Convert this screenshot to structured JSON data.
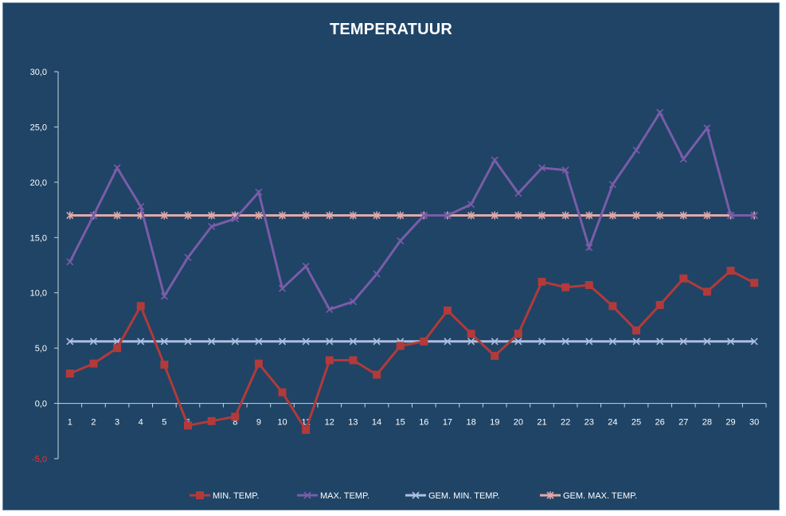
{
  "chart_data": {
    "type": "line",
    "title": "TEMPERATUUR",
    "x": [
      1,
      2,
      3,
      4,
      5,
      6,
      7,
      8,
      9,
      10,
      11,
      12,
      13,
      14,
      15,
      16,
      17,
      18,
      19,
      20,
      21,
      22,
      23,
      24,
      25,
      26,
      27,
      28,
      29,
      30
    ],
    "y_ticks": [
      "-5,0",
      "0,0",
      "5,0",
      "10,0",
      "15,0",
      "20,0",
      "25,0",
      "30,0"
    ],
    "ylim": [
      -5,
      30
    ],
    "grid": false,
    "legend_position": "bottom",
    "series": [
      {
        "name": "MIN. TEMP.",
        "color": "#b23a3a",
        "marker": "square",
        "values": [
          2.7,
          3.6,
          5.0,
          8.8,
          3.5,
          -2.0,
          -1.6,
          -1.2,
          3.6,
          1.0,
          -2.4,
          3.9,
          3.9,
          2.6,
          5.2,
          5.6,
          8.4,
          6.3,
          4.3,
          6.3,
          11.0,
          10.5,
          10.7,
          8.8,
          6.6,
          8.9,
          11.3,
          10.1,
          12.0,
          10.9
        ]
      },
      {
        "name": "MAX. TEMP.",
        "color": "#7a5ca8",
        "marker": "x",
        "values": [
          12.8,
          17.0,
          21.3,
          17.8,
          9.7,
          13.2,
          16.0,
          16.7,
          19.1,
          10.4,
          12.4,
          8.5,
          9.2,
          11.7,
          14.7,
          17.0,
          17.0,
          18.0,
          22.0,
          19.0,
          21.3,
          21.1,
          14.1,
          19.8,
          22.9,
          26.3,
          22.1,
          24.9,
          17.0,
          17.0
        ]
      },
      {
        "name": "GEM. MIN. TEMP.",
        "color": "#aebfe0",
        "marker": "x",
        "values": [
          5.6,
          5.6,
          5.6,
          5.6,
          5.6,
          5.6,
          5.6,
          5.6,
          5.6,
          5.6,
          5.6,
          5.6,
          5.6,
          5.6,
          5.6,
          5.6,
          5.6,
          5.6,
          5.6,
          5.6,
          5.6,
          5.6,
          5.6,
          5.6,
          5.6,
          5.6,
          5.6,
          5.6,
          5.6,
          5.6
        ]
      },
      {
        "name": "GEM.  MAX. TEMP.",
        "color": "#e2a8a8",
        "marker": "asterisk",
        "values": [
          17.0,
          17.0,
          17.0,
          17.0,
          17.0,
          17.0,
          17.0,
          17.0,
          17.0,
          17.0,
          17.0,
          17.0,
          17.0,
          17.0,
          17.0,
          17.0,
          17.0,
          17.0,
          17.0,
          17.0,
          17.0,
          17.0,
          17.0,
          17.0,
          17.0,
          17.0,
          17.0,
          17.0,
          17.0,
          17.0
        ]
      }
    ]
  }
}
